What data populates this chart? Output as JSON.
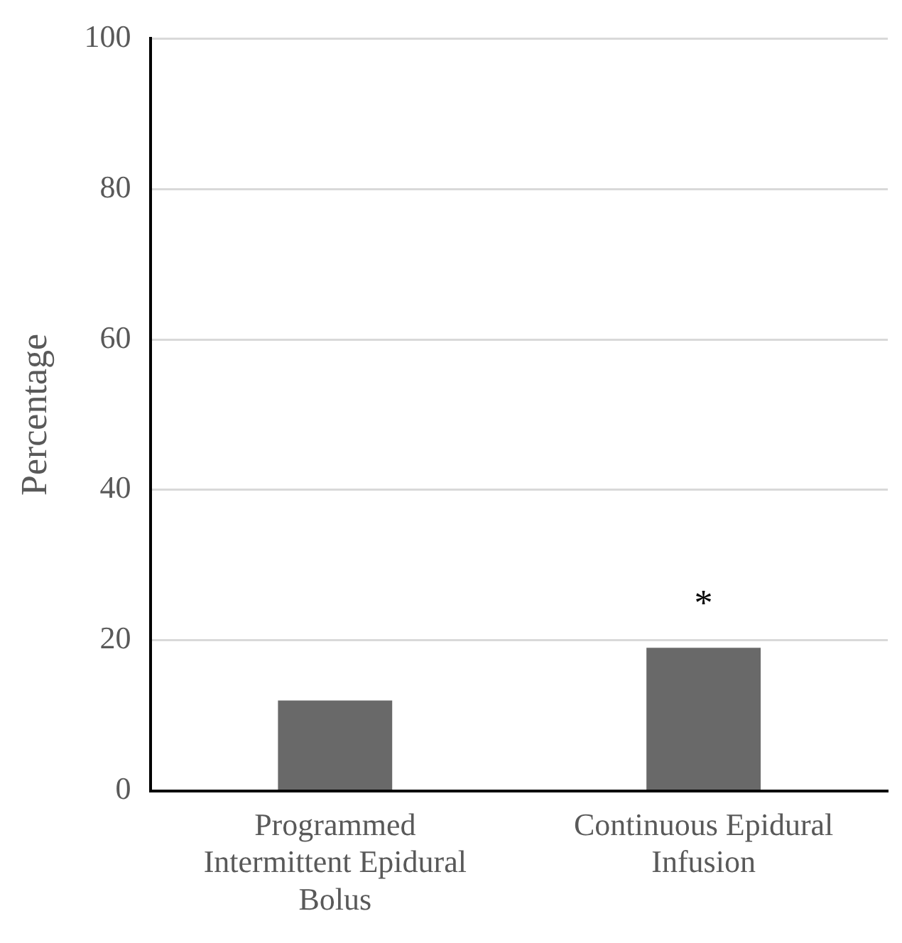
{
  "chart_data": {
    "type": "bar",
    "ylabel": "Percentage",
    "categories": [
      "Programmed Intermittent Epidural Bolus",
      "Continuous Epidural Infusion"
    ],
    "values": [
      12,
      19
    ],
    "color": "#696969",
    "ylim": [
      0,
      100
    ],
    "yticks": [
      0,
      20,
      40,
      60,
      80,
      100
    ],
    "grid": "y",
    "legend": false,
    "annotations": [
      {
        "text": "*",
        "x": "Continuous Epidural Infusion",
        "y": 19
      }
    ]
  }
}
